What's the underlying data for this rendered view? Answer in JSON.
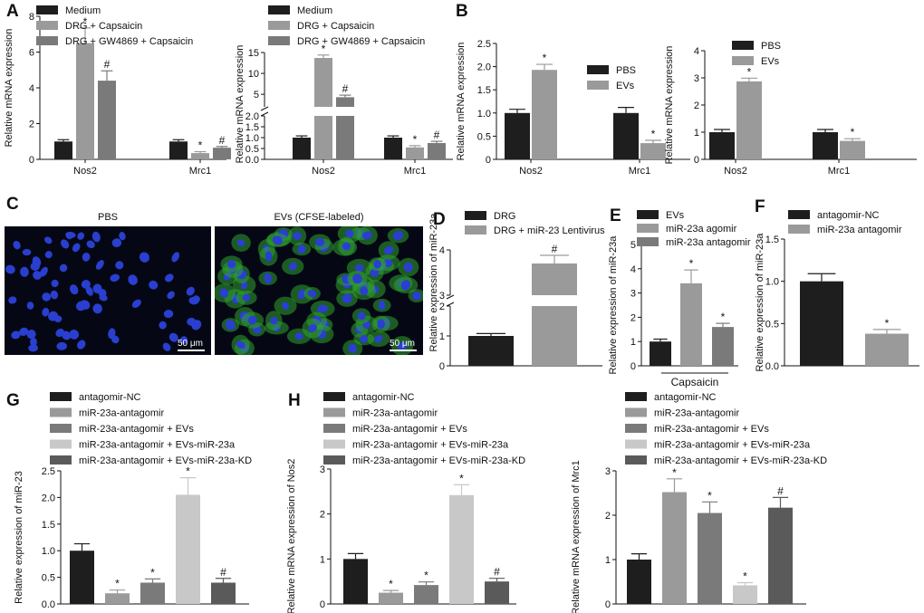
{
  "panel_letters": {
    "A": "A",
    "B": "B",
    "C": "C",
    "D": "D",
    "E": "E",
    "F": "F",
    "G": "G",
    "H": "H"
  },
  "colors": {
    "black": "#1e1e1e",
    "gray1": "#9a9a9a",
    "gray2": "#7a7a7a",
    "gray3": "#c8c8c8",
    "gray4": "#5a5a5a",
    "micro_bg": "#050814",
    "nuclei": "#2a3fd0",
    "cytoplasm": "#2fa32f"
  },
  "microscopy": {
    "pbs_title": "PBS",
    "evs_title": "EVs (CFSE-labeled)",
    "scale_left": "50 μm",
    "scale_right": "50 μm"
  },
  "chart_data": [
    {
      "id": "A1",
      "type": "bar",
      "categories": [
        "Nos2",
        "Mrc1"
      ],
      "series": [
        {
          "name": "Medium",
          "color": "#1e1e1e",
          "values": [
            1.0,
            1.0
          ],
          "err": [
            0.1,
            0.1
          ],
          "mark": [
            "",
            ""
          ]
        },
        {
          "name": "DRG + Capsaicin",
          "color": "#9a9a9a",
          "values": [
            6.5,
            0.35
          ],
          "err": [
            0.85,
            0.08
          ],
          "mark": [
            "*",
            "*"
          ]
        },
        {
          "name": "DRG + GW4869 + Capsaicin",
          "color": "#7a7a7a",
          "values": [
            4.4,
            0.65
          ],
          "err": [
            0.55,
            0.07
          ],
          "mark": [
            "#",
            "#"
          ]
        }
      ],
      "ylabel": "Relative mRNA expression",
      "ylim": [
        0,
        8
      ],
      "yticks": [
        "0",
        "2",
        "4",
        "6",
        "8"
      ],
      "xlabel": ""
    },
    {
      "id": "A2",
      "type": "bar",
      "categories": [
        "Nos2",
        "Mrc1"
      ],
      "series": [
        {
          "name": "Medium",
          "color": "#1e1e1e",
          "values": [
            1.0,
            1.0
          ],
          "err": [
            0.08,
            0.08
          ],
          "mark": [
            "",
            ""
          ]
        },
        {
          "name": "DRG + Capsaicin",
          "color": "#9a9a9a",
          "values": [
            13.7,
            0.55
          ],
          "err": [
            0.7,
            0.08
          ],
          "mark": [
            "*",
            "*"
          ]
        },
        {
          "name": "DRG + GW4869 + Capsaicin",
          "color": "#7a7a7a",
          "values": [
            4.3,
            0.75
          ],
          "err": [
            0.5,
            0.08
          ],
          "mark": [
            "#",
            "#"
          ]
        }
      ],
      "ylabel": "Relative mRNA expression",
      "axis_break": true,
      "yticks_low": [
        "0.0",
        "0.5",
        "1.0",
        "1.5",
        "2.0"
      ],
      "yticks_high": [
        "5",
        "10",
        "15"
      ]
    },
    {
      "id": "B1",
      "type": "bar",
      "categories": [
        "Nos2",
        "Mrc1"
      ],
      "series": [
        {
          "name": "PBS",
          "color": "#1e1e1e",
          "values": [
            1.0,
            1.0
          ],
          "err": [
            0.08,
            0.12
          ],
          "mark": [
            "",
            ""
          ]
        },
        {
          "name": "EVs",
          "color": "#9a9a9a",
          "values": [
            1.93,
            0.35
          ],
          "err": [
            0.12,
            0.06
          ],
          "mark": [
            "*",
            "*"
          ]
        }
      ],
      "ylabel": "Relative mRNA expression",
      "ylim": [
        0,
        2.5
      ],
      "yticks": [
        "0",
        "0.5",
        "1.0",
        "1.5",
        "2.0",
        "2.5"
      ]
    },
    {
      "id": "B2",
      "type": "bar",
      "categories": [
        "Nos2",
        "Mrc1"
      ],
      "series": [
        {
          "name": "PBS",
          "color": "#1e1e1e",
          "values": [
            1.0,
            1.0
          ],
          "err": [
            0.1,
            0.1
          ],
          "mark": [
            "",
            ""
          ]
        },
        {
          "name": "EVs",
          "color": "#9a9a9a",
          "values": [
            2.87,
            0.68
          ],
          "err": [
            0.12,
            0.08
          ],
          "mark": [
            "*",
            "*"
          ]
        }
      ],
      "ylabel": "Relative mRNA expression",
      "ylim": [
        0,
        4
      ],
      "yticks": [
        "0",
        "1",
        "2",
        "3",
        "4"
      ]
    },
    {
      "id": "D",
      "type": "bar",
      "categories": [
        "",
        ""
      ],
      "series": [
        {
          "name": "",
          "values": [
            1.0,
            3.7
          ],
          "err": [
            0.08,
            0.18
          ],
          "colors": [
            "#1e1e1e",
            "#9a9a9a"
          ],
          "mark": [
            "",
            "#"
          ]
        }
      ],
      "legend": [
        "DRG",
        "DRG + miR-23 Lentivirus"
      ],
      "ylabel": "Relative expression of miR-23a",
      "axis_break": true,
      "yticks_low": [
        "0",
        "1",
        "2"
      ],
      "yticks_high": [
        "3",
        "4"
      ]
    },
    {
      "id": "E",
      "type": "bar",
      "categories": [
        "EVs",
        "miR-23a agomir",
        "miR-23a antagomir"
      ],
      "series": [
        {
          "name": "",
          "values": [
            1.0,
            3.4,
            1.6
          ],
          "err": [
            0.1,
            0.55,
            0.15
          ],
          "colors": [
            "#1e1e1e",
            "#9a9a9a",
            "#7a7a7a"
          ],
          "mark": [
            "",
            "*",
            "*"
          ]
        }
      ],
      "legend": [
        "EVs",
        "miR-23a agomir",
        "miR-23a antagomir"
      ],
      "ylabel": "Relative expression of miR-23a",
      "xlabel": "Capsaicin",
      "ylim": [
        0,
        5
      ],
      "yticks": [
        "0",
        "1",
        "2",
        "3",
        "4",
        "5"
      ]
    },
    {
      "id": "F",
      "type": "bar",
      "categories": [
        "antagomir-NC",
        "miR-23a antagomir"
      ],
      "series": [
        {
          "name": "",
          "values": [
            1.0,
            0.38
          ],
          "err": [
            0.09,
            0.05
          ],
          "colors": [
            "#1e1e1e",
            "#9a9a9a"
          ],
          "mark": [
            "",
            "*"
          ]
        }
      ],
      "legend": [
        "antagomir-NC",
        "miR-23a antagomir"
      ],
      "ylabel": "Relative expression of miR-23a",
      "ylim": [
        0,
        1.5
      ],
      "yticks": [
        "0.0",
        "0.5",
        "1.0",
        "1.5"
      ]
    },
    {
      "id": "G",
      "type": "bar",
      "categories": [
        "antagomir-NC",
        "miR-23a-antagomir",
        "miR-23a-antagomir + EVs",
        "miR-23a-antagomir + EVs-miR-23a",
        "miR-23a-antagomir + EVs-miR-23a-KD"
      ],
      "series": [
        {
          "name": "",
          "values": [
            1.0,
            0.2,
            0.4,
            2.05,
            0.4
          ],
          "err": [
            0.13,
            0.06,
            0.07,
            0.32,
            0.08
          ],
          "colors": [
            "#1e1e1e",
            "#9a9a9a",
            "#7a7a7a",
            "#c8c8c8",
            "#5a5a5a"
          ],
          "mark": [
            "",
            "*",
            "*",
            "*",
            "#"
          ]
        }
      ],
      "ylabel": "Relative expression of miR-23",
      "ylim": [
        0,
        2.5
      ],
      "yticks": [
        "0.0",
        "0.5",
        "1.0",
        "1.5",
        "2.0",
        "2.5"
      ]
    },
    {
      "id": "H1",
      "type": "bar",
      "categories": [
        "antagomir-NC",
        "miR-23a-antagomir",
        "miR-23a-antagomir + EVs",
        "miR-23a-antagomir + EVs-miR-23a",
        "miR-23a-antagomir + EVs-miR-23a-KD"
      ],
      "series": [
        {
          "name": "",
          "values": [
            1.0,
            0.25,
            0.42,
            2.42,
            0.5
          ],
          "err": [
            0.12,
            0.05,
            0.07,
            0.23,
            0.07
          ],
          "colors": [
            "#1e1e1e",
            "#9a9a9a",
            "#7a7a7a",
            "#c8c8c8",
            "#5a5a5a"
          ],
          "mark": [
            "",
            "*",
            "*",
            "*",
            "#"
          ]
        }
      ],
      "ylabel": "Relative mRNA expression of Nos2",
      "ylim": [
        0,
        3
      ],
      "yticks": [
        "0",
        "1",
        "2",
        "3"
      ]
    },
    {
      "id": "H2",
      "type": "bar",
      "categories": [
        "antagomir-NC",
        "miR-23a-antagomir",
        "miR-23a-antagomir + EVs",
        "miR-23a-antagomir + EVs-miR-23a",
        "miR-23a-antagomir + EVs-miR-23a-KD"
      ],
      "series": [
        {
          "name": "",
          "values": [
            1.0,
            2.52,
            2.05,
            0.42,
            2.17
          ],
          "err": [
            0.13,
            0.3,
            0.25,
            0.06,
            0.23
          ],
          "colors": [
            "#1e1e1e",
            "#9a9a9a",
            "#7a7a7a",
            "#c8c8c8",
            "#5a5a5a"
          ],
          "mark": [
            "",
            "*",
            "*",
            "*",
            "#"
          ]
        }
      ],
      "ylabel": "Relative mRNA expression of Mrc1",
      "ylim": [
        0,
        3
      ],
      "yticks": [
        "0",
        "1",
        "2",
        "3"
      ]
    }
  ]
}
